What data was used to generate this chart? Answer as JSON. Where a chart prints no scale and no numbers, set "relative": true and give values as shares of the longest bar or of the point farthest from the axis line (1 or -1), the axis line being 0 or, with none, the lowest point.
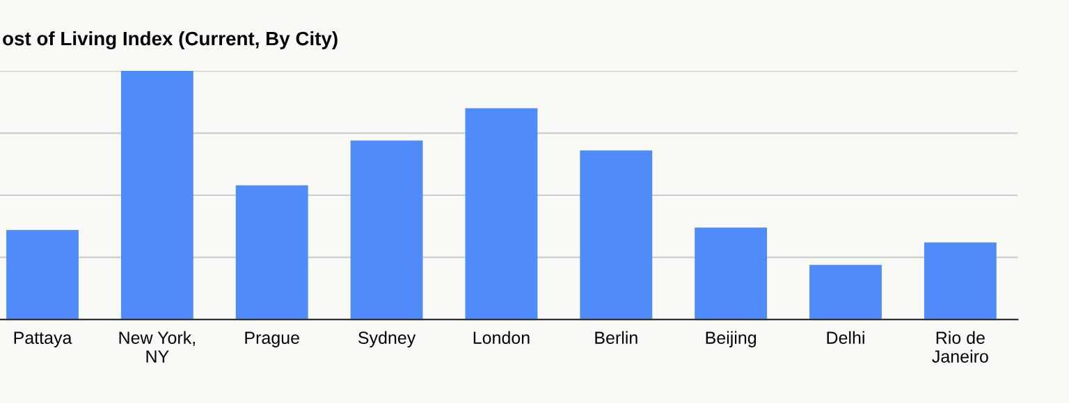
{
  "chart_data": {
    "type": "bar",
    "title": "ost of Living Index (Current, By City)",
    "categories": [
      "Pattaya",
      "New York,\nNY",
      "Prague",
      "Sydney",
      "London",
      "Berlin",
      "Beijing",
      "Delhi",
      "Rio de\nJaneiro"
    ],
    "values": [
      0.36,
      1,
      0.54,
      0.72,
      0.85,
      0.68,
      0.37,
      0.22,
      0.31
    ],
    "color": "#4f8bf9",
    "relative": true,
    "grid": "y"
  }
}
